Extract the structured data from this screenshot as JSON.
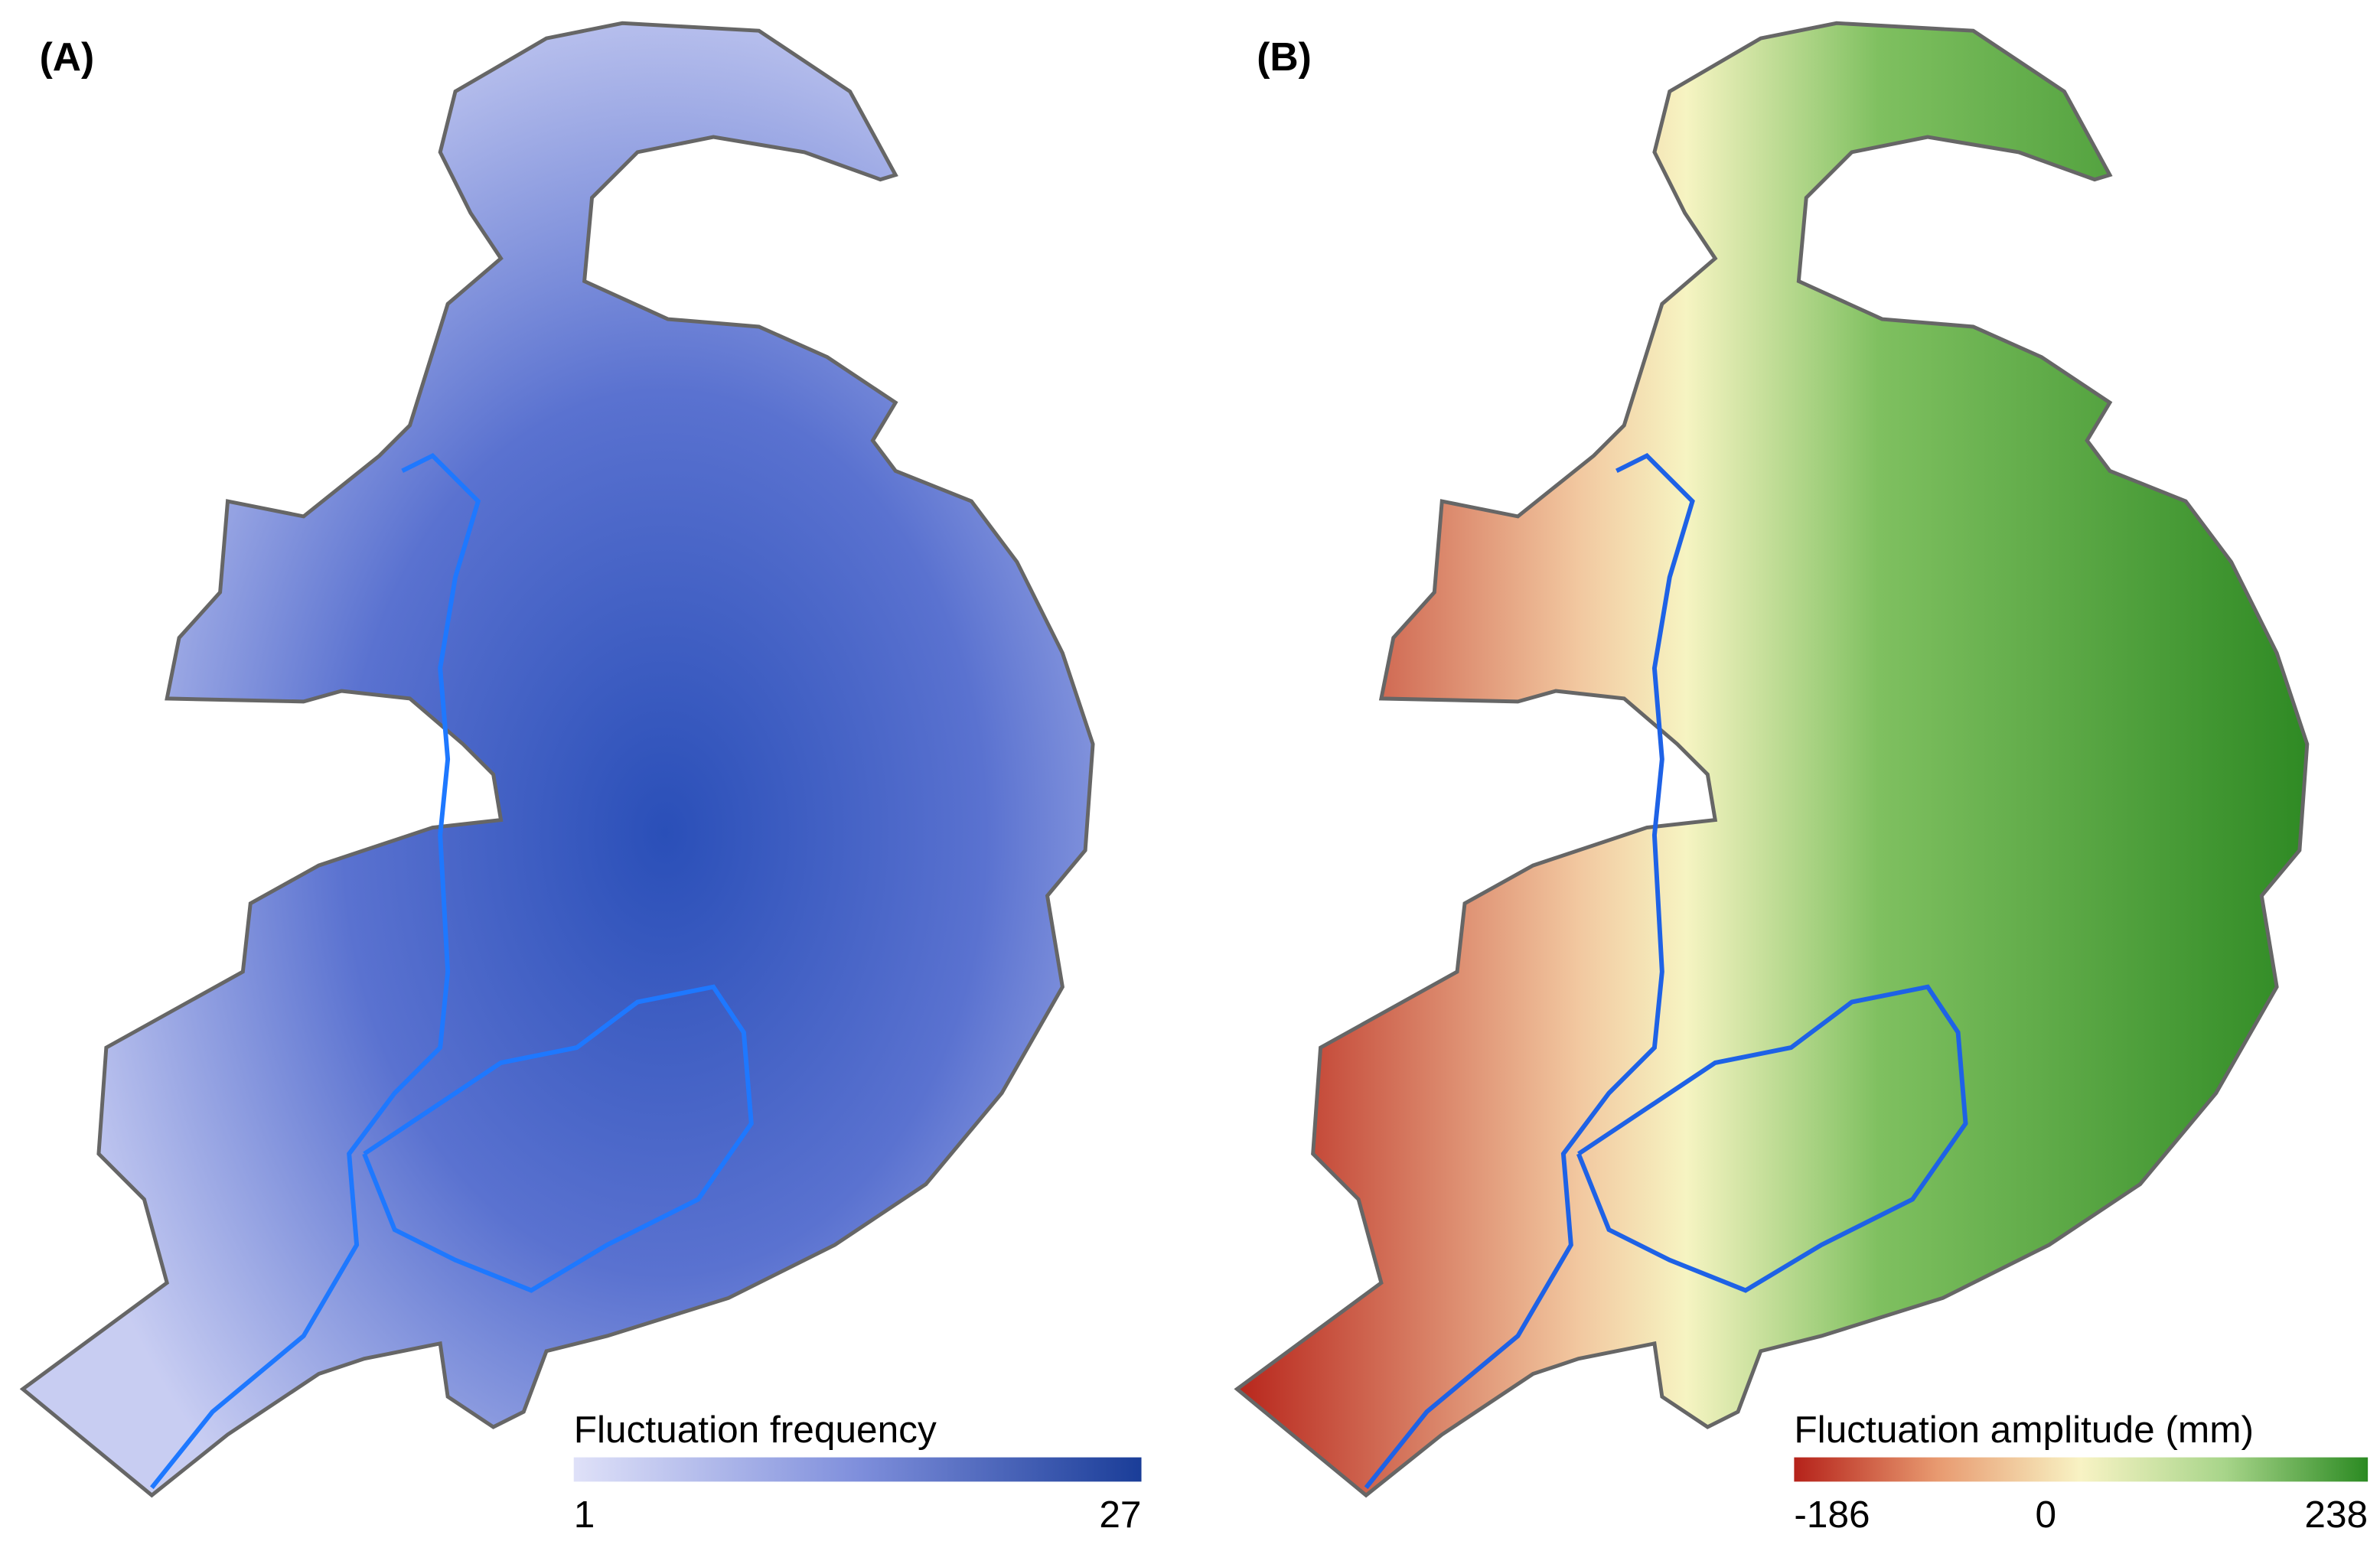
{
  "panels": [
    {
      "label": "(A)",
      "legend": {
        "title": "Fluctuation frequency",
        "range": [
          1,
          27
        ],
        "ticks": [
          1,
          27
        ],
        "colors": [
          "#dfe1f8",
          "#7f8fdc",
          "#1a3d98"
        ]
      }
    },
    {
      "label": "(B)",
      "legend": {
        "title": "Fluctuation amplitude (mm)",
        "range": [
          -186,
          238
        ],
        "ticks": [
          -186,
          0,
          238
        ],
        "colors": [
          "#b5221a",
          "#e89a70",
          "#f8f3c4",
          "#a8d58a",
          "#2b8a22"
        ]
      }
    }
  ]
}
